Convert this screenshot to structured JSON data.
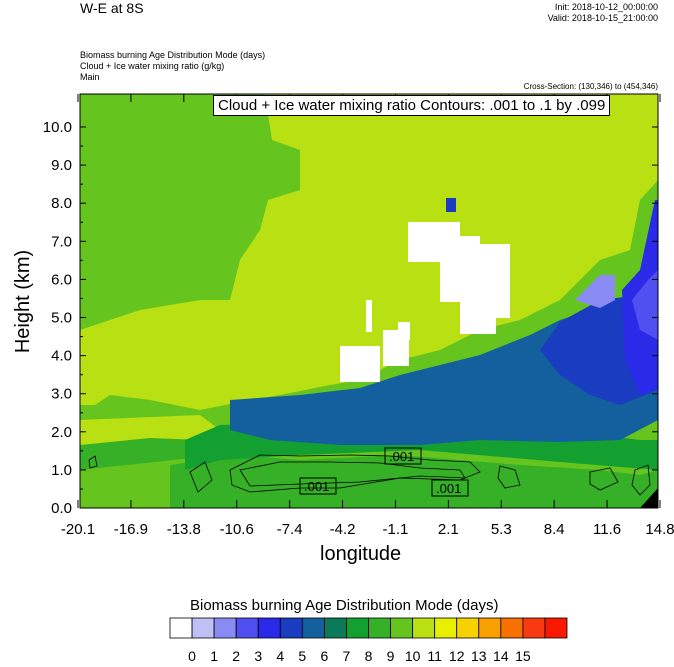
{
  "header": {
    "title": "W-E at 8S",
    "init": "Init: 2018-10-12_00:00:00",
    "valid": "Valid: 2018-10-15_21:00:00",
    "fields": [
      "Biomass burning Age Distribution Mode   (days)",
      "Cloud + Ice water mixing ratio   (g/kg)",
      "Main"
    ],
    "cross_section": "Cross-Section: (130,346) to (454,346)",
    "contour_info": "Cloud + Ice water mixing ratio Contours: .001 to .1 by .099"
  },
  "chart_data": {
    "type": "heatmap",
    "xlabel": "longitude",
    "ylabel": "Height (km)",
    "xticks": [
      "-20.1",
      "-16.9",
      "-13.8",
      "-10.6",
      "-7.4",
      "-4.2",
      "-1.1",
      "2.1",
      "5.3",
      "8.4",
      "11.6",
      "14.8"
    ],
    "yticks": [
      "0.0",
      "1.0",
      "2.0",
      "3.0",
      "4.0",
      "5.0",
      "6.0",
      "7.0",
      "8.0",
      "9.0",
      "10.0"
    ],
    "ylim": [
      0,
      10.8
    ],
    "contour_labels": [
      ".001",
      ".001",
      ".001"
    ],
    "colorbar": {
      "title": "Biomass burning Age Distribution Mode  (days)",
      "labels": [
        "0",
        "1",
        "2",
        "3",
        "4",
        "5",
        "6",
        "7",
        "8",
        "9",
        "10",
        "11",
        "12",
        "13",
        "14",
        "15"
      ],
      "colors": [
        "#ffffff",
        "#bfc0f5",
        "#8a8af5",
        "#5050f0",
        "#2a2ae8",
        "#1a3cc0",
        "#14609e",
        "#0a7a5a",
        "#13a030",
        "#36b027",
        "#66c41e",
        "#b8e012",
        "#e8f000",
        "#f8d200",
        "#f8a000",
        "#f87000",
        "#f83a10",
        "#f81a00"
      ]
    },
    "approx_field": {
      "note": "dominant mode (days): 10 at upper-left, 11 at upper-right, 8-9 near surface, 6 in mid band, 3-5 near east edge, 0 in clouds"
    }
  }
}
